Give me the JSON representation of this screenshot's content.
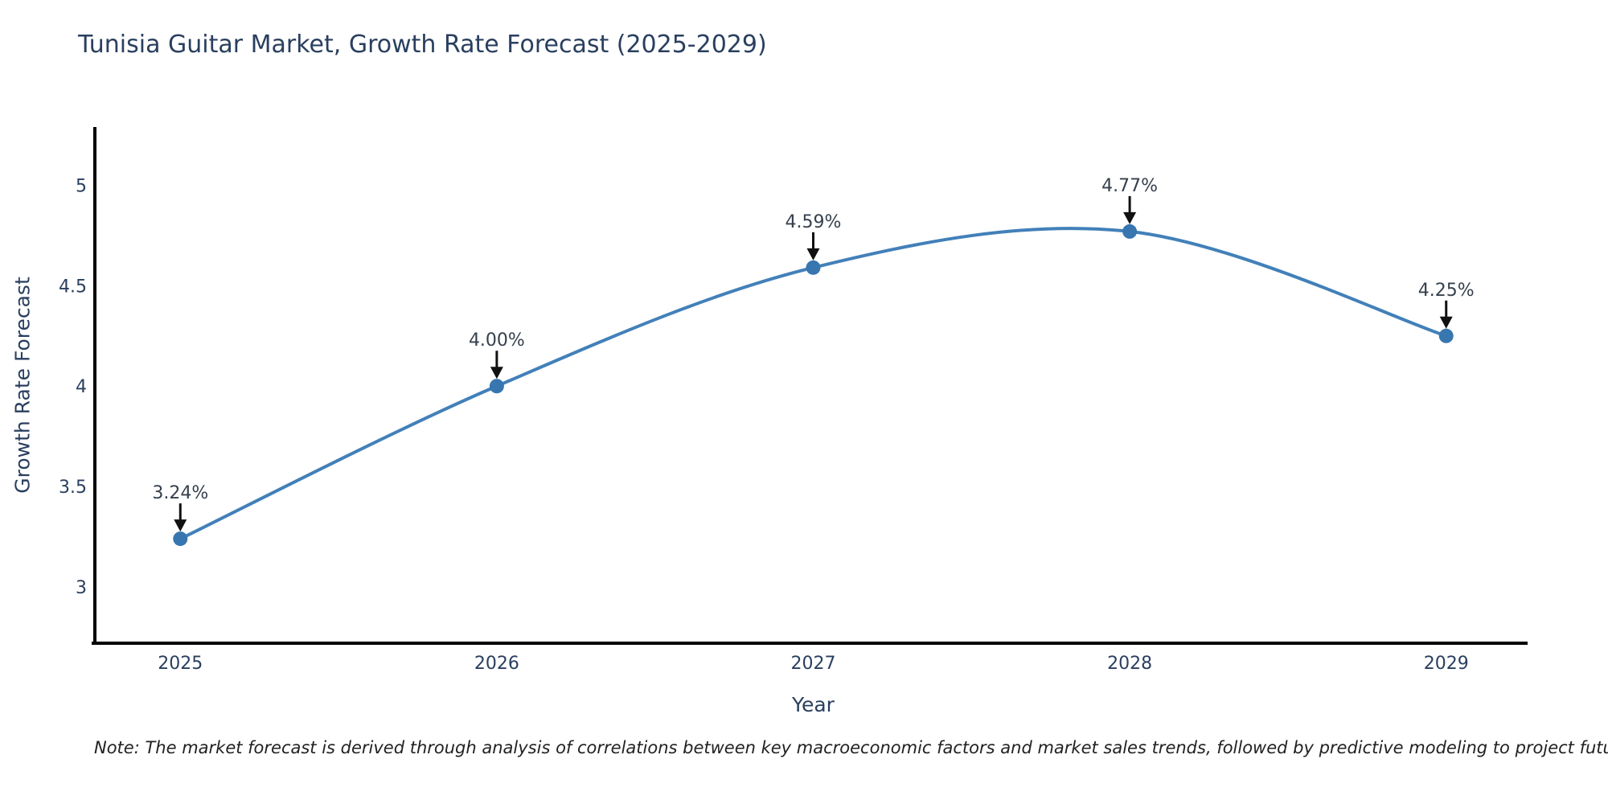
{
  "footnote": "Note: The market forecast is derived through analysis of correlations between key macroeconomic factors and market sales trends, followed by predictive modeling to project future sales",
  "chart_data": {
    "type": "line",
    "line_shape": "spline",
    "title": "Tunisia Guitar Market, Growth Rate Forecast (2025-2029)",
    "xlabel": "Year",
    "ylabel": "Growth Rate Forecast",
    "x": [
      2025,
      2026,
      2027,
      2028,
      2029
    ],
    "values": [
      3.24,
      4.0,
      4.59,
      4.77,
      4.25
    ],
    "point_labels": [
      "3.24%",
      "4.00%",
      "4.59%",
      "4.77%",
      "4.25%"
    ],
    "x_tick_labels": [
      "2025",
      "2026",
      "2027",
      "2028",
      "2029"
    ],
    "y_tick_labels": [
      "3",
      "3.5",
      "4",
      "4.5",
      "5"
    ],
    "xlim": [
      2024.73,
      2029.27
    ],
    "ylim": [
      2.72,
      5.29
    ],
    "grid": false,
    "legend": "none",
    "markers": true,
    "annotations_have_arrows": true,
    "colors": {
      "line": "#4280b9",
      "marker": "#3776af",
      "axis_line": "#000000",
      "text": "#2a3f5f",
      "annotation_text": "#36404d",
      "arrow": "#111111",
      "background": "#ffffff"
    }
  }
}
